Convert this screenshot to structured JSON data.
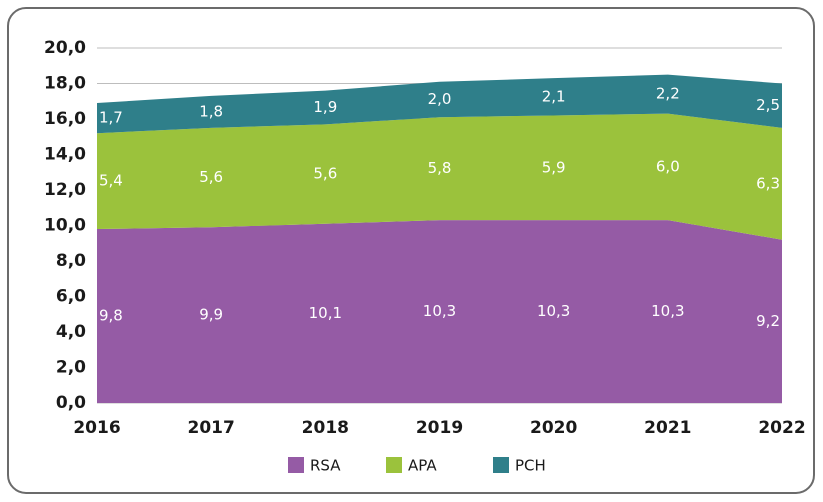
{
  "chart_data": {
    "type": "stacked_area",
    "categories": [
      "2016",
      "2017",
      "2018",
      "2019",
      "2020",
      "2021",
      "2022"
    ],
    "series": [
      {
        "name": "RSA",
        "color": "#955ba5",
        "values": [
          9.8,
          9.9,
          10.1,
          10.3,
          10.3,
          10.3,
          9.2
        ],
        "value_labels": [
          "9,8",
          "9,9",
          "10,1",
          "10,3",
          "10,3",
          "10,3",
          "9,2"
        ]
      },
      {
        "name": "APA",
        "color": "#9bc23c",
        "values": [
          5.4,
          5.6,
          5.6,
          5.8,
          5.9,
          6.0,
          6.3
        ],
        "value_labels": [
          "5,4",
          "5,6",
          "5,6",
          "5,8",
          "5,9",
          "6,0",
          "6,3"
        ]
      },
      {
        "name": "PCH",
        "color": "#2f7f8a",
        "values": [
          1.7,
          1.8,
          1.9,
          2.0,
          2.1,
          2.2,
          2.5
        ],
        "value_labels": [
          "1,7",
          "1,8",
          "1,9",
          "2,0",
          "2,1",
          "2,2",
          "2,5"
        ]
      }
    ],
    "ylim": [
      0,
      20
    ],
    "yticks": [
      {
        "value": 0,
        "label": "0,0"
      },
      {
        "value": 2,
        "label": "2,0"
      },
      {
        "value": 4,
        "label": "4,0"
      },
      {
        "value": 6,
        "label": "6,0"
      },
      {
        "value": 8,
        "label": "8,0"
      },
      {
        "value": 10,
        "label": "10,0"
      },
      {
        "value": 12,
        "label": "12,0"
      },
      {
        "value": 14,
        "label": "14,0"
      },
      {
        "value": 16,
        "label": "16,0"
      },
      {
        "value": 18,
        "label": "18,0"
      },
      {
        "value": 20,
        "label": "20,0"
      }
    ],
    "grid": true
  }
}
